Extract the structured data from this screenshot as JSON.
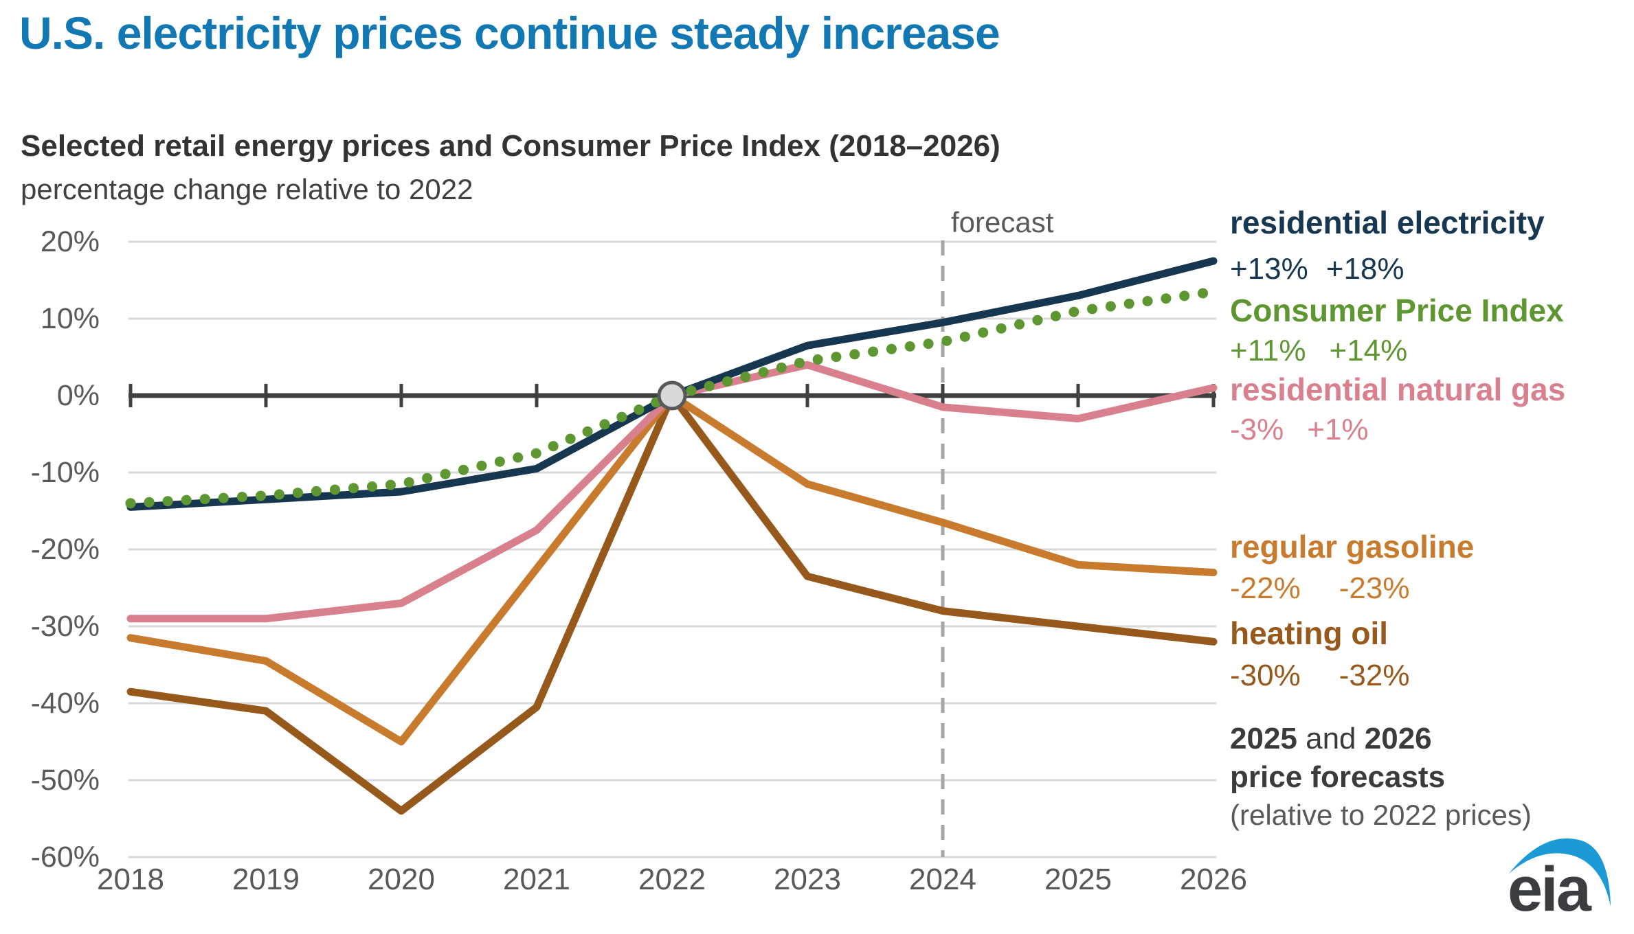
{
  "title": "U.S. electricity prices continue steady increase",
  "subtitle_bold": "Selected retail energy prices and Consumer Price Index (2018–2026)",
  "subtitle_note": "percentage change relative to 2022",
  "forecast_label": "forecast",
  "colors": {
    "title_blue": "#1178B4",
    "electricity_navy": "#16374F",
    "cpi_green": "#5E9732",
    "natural_gas_pink": "#D9808F",
    "gasoline_orange": "#C87B2D",
    "heating_oil_brown": "#96591B",
    "axis": "#404040",
    "gridline": "#D9D9D9",
    "dashed_forecast": "#A6A6A6",
    "marker_fill": "#D9D9D9",
    "marker_stroke": "#58595B",
    "logo_blue": "#1C9AD6"
  },
  "chart_data": {
    "type": "line",
    "title": "Selected retail energy prices and Consumer Price Index (2018–2026)",
    "ylabel": "percentage change relative to 2022",
    "x": [
      2018,
      2019,
      2020,
      2021,
      2022,
      2023,
      2024,
      2025,
      2026
    ],
    "x_tick_labels": [
      "2018",
      "2019",
      "2020",
      "2021",
      "2022",
      "2023",
      "2024",
      "2025",
      "2026"
    ],
    "y_ticks": [
      20,
      10,
      0,
      -10,
      -20,
      -30,
      -40,
      -50,
      -60
    ],
    "y_tick_labels": [
      "20%",
      "10%",
      "0%",
      "-10%",
      "-20%",
      "-30%",
      "-40%",
      "-50%",
      "-60%"
    ],
    "ylim": [
      -60,
      20
    ],
    "grid": true,
    "legend_position": "right",
    "forecast_line_x": 2024,
    "base_year_marker": {
      "x": 2022,
      "y": 0
    },
    "series": [
      {
        "name": "heating oil",
        "color": "#96591B",
        "style": "solid",
        "values": [
          -38.5,
          -41,
          -54,
          -40.5,
          0,
          -23.5,
          -28,
          -30,
          -32
        ]
      },
      {
        "name": "regular gasoline",
        "color": "#C87B2D",
        "style": "solid",
        "values": [
          -31.5,
          -34.5,
          -45,
          -22.5,
          0,
          -11.5,
          -16.5,
          -22,
          -23
        ]
      },
      {
        "name": "residential natural gas",
        "color": "#D9808F",
        "style": "solid",
        "values": [
          -29,
          -29,
          -27,
          -17.5,
          0,
          4,
          -1.5,
          -3,
          1
        ]
      },
      {
        "name": "residential electricity",
        "color": "#16374F",
        "style": "solid",
        "values": [
          -14.5,
          -13.5,
          -12.5,
          -9.5,
          0,
          6.5,
          9.5,
          13,
          17.5
        ]
      },
      {
        "name": "Consumer Price Index",
        "color": "#5E9732",
        "style": "dotted",
        "values": [
          -14,
          -13,
          -11.5,
          -7.5,
          0,
          4.5,
          7,
          11,
          13.5
        ]
      }
    ]
  },
  "legend": {
    "electricity": {
      "label": "residential electricity",
      "val_2025": "+13%",
      "val_2026": "+18%"
    },
    "cpi": {
      "label": "Consumer Price Index",
      "val_2025": "+11%",
      "val_2026": "+14%"
    },
    "natural_gas": {
      "label": "residential natural gas",
      "val_2025": "-3%",
      "val_2026": "+1%"
    },
    "gasoline": {
      "label": "regular gasoline",
      "val_2025": "-22%",
      "val_2026": "-23%"
    },
    "heating_oil": {
      "label": "heating oil",
      "val_2025": "-30%",
      "val_2026": "-32%"
    }
  },
  "note": {
    "year1": "2025",
    "conj": " and ",
    "year2": "2026",
    "line2": "price forecasts",
    "line3": "(relative to 2022 prices)"
  },
  "logo_text": "eia"
}
